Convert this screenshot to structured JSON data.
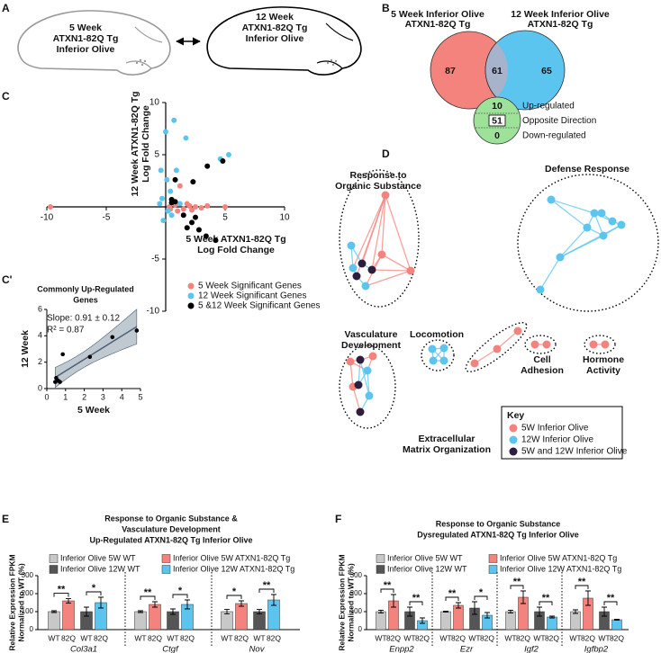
{
  "panels": {
    "A": {
      "letter": "A",
      "brain_5w": [
        "5 Week",
        "ATXN1-82Q Tg",
        "Inferior Olive"
      ],
      "brain_12w": [
        "12 Week",
        "ATXN1-82Q Tg",
        "Inferior Olive"
      ]
    },
    "B": {
      "letter": "B",
      "set_5w": [
        "5 Week Inferior Olive",
        "ATXN1-82Q Tg"
      ],
      "set_12w": [
        "12 Week Inferior Olive",
        "ATXN1-82Q Tg"
      ],
      "only_5w": 87,
      "shared": 61,
      "only_12w": 65,
      "up": 10,
      "opposite": 51,
      "down": 0,
      "up_label": "Up-regulated",
      "opposite_label": "Opposite Direction",
      "down_label": "Down-regulated"
    },
    "D": {
      "letter": "D",
      "clusters": [
        {
          "label": [
            "Response to",
            "Organic Substance"
          ]
        },
        {
          "label": [
            "Defense Response"
          ]
        },
        {
          "label": [
            "Vasculature",
            "Development"
          ]
        },
        {
          "label": [
            "Locomotion"
          ]
        },
        {
          "label": [
            "Extracellular",
            "Matrix Organization"
          ]
        },
        {
          "label": [
            "Cell",
            "Adhesion"
          ]
        },
        {
          "label": [
            "Hormone",
            "Activity"
          ]
        }
      ],
      "key": {
        "title": "Key",
        "items": [
          {
            "label": "5W Inferior Olive",
            "color": "#f4837d"
          },
          {
            "label": "12W Inferior Olive",
            "color": "#5bc5ef"
          },
          {
            "label": "5W and 12W Inferior Olive",
            "color": "#2e1d3d"
          }
        ]
      }
    }
  },
  "chart_data": [
    {
      "panel": "C",
      "type": "scatter",
      "xlabel": [
        "5 Week ATXN1-82Q Tg",
        "Log Fold Change"
      ],
      "xlabel_color": "#f4837d",
      "ylabel": [
        "12 Week ATXN1-82Q Tg",
        "Log Fold Change"
      ],
      "ylabel_color": "#5bc5ef",
      "xlim": [
        -10,
        10
      ],
      "ylim": [
        -10,
        10
      ],
      "xticks": [
        -10,
        -5,
        5,
        10
      ],
      "yticks": [
        -10,
        -5,
        5,
        10
      ],
      "series": [
        {
          "name": "5 Week Significant Genes",
          "color": "#f4837d",
          "x": [
            -9.7,
            5,
            1.2,
            0.3,
            0.8,
            1.5,
            2,
            2.5,
            3,
            1,
            0.6,
            1.8,
            3.5,
            0.4,
            2.2
          ],
          "values": [
            0,
            0,
            2,
            0,
            0.2,
            -0.2,
            0.1,
            0,
            -0.1,
            -0.4,
            0.4,
            0.3,
            0.1,
            -0.2,
            -0.3
          ]
        },
        {
          "name": "12 Week Significant Genes",
          "color": "#5bc5ef",
          "x": [
            0,
            1.7,
            0.7,
            4.6,
            5.3,
            0.9,
            -0.4,
            0.1,
            0.4,
            -0.3,
            0.2,
            -0.2,
            0.5,
            1.2,
            -0.5
          ],
          "values": [
            7.2,
            6.6,
            8.3,
            4.6,
            5,
            3.5,
            3.5,
            2.6,
            1.5,
            0.8,
            -0.4,
            -1.3,
            -0.8,
            0.3,
            0.3
          ]
        },
        {
          "name": "5 &12 Week Significant Genes",
          "color": "#000000",
          "x": [
            4.8,
            3.5,
            2.3,
            0.8,
            0.5,
            0.6,
            0.5,
            0.8,
            1.5,
            2.2,
            2.8,
            3.4,
            2.5,
            1.8,
            4.2
          ],
          "values": [
            4.4,
            3.9,
            2.4,
            2.6,
            0.7,
            0.5,
            0.4,
            0.5,
            -0.8,
            -1.5,
            -2.2,
            -2.8,
            -1,
            -2,
            -3.2
          ]
        }
      ]
    },
    {
      "panel": "C'",
      "type": "scatter",
      "title": [
        "Commonly Up-Regulated",
        "Genes"
      ],
      "annotations": [
        "Slope: 0.91 ± 0.12",
        "R² = 0.87"
      ],
      "xlabel": "5 Week",
      "xlabel_color": "#f4837d",
      "ylabel": "12 Week",
      "ylabel_color": "#5bc5ef",
      "xlim": [
        0,
        5
      ],
      "ylim": [
        0,
        6
      ],
      "xticks": [
        0,
        1,
        2,
        3,
        4,
        5
      ],
      "yticks": [
        0,
        2,
        4,
        6
      ],
      "fit": true,
      "fit_color": "#4a6079",
      "series": [
        {
          "color": "#000000",
          "x": [
            0.45,
            0.5,
            0.6,
            0.7,
            0.85,
            2.3,
            3.5,
            4.8
          ],
          "values": [
            0.5,
            0.8,
            0.6,
            0.5,
            2.6,
            2.4,
            3.9,
            4.4
          ]
        }
      ]
    },
    {
      "panel": "E",
      "type": "bar",
      "title": [
        "Response to Organic Substance &",
        "Vasculature Development",
        "Up-Regulated ATXN1-82Q Tg Inferior Olive"
      ],
      "ylabel": [
        "Relative Expression FPKM",
        "Normalized to WT (%)"
      ],
      "categories": [
        "Col3a1",
        "Ctgf",
        "Nov"
      ],
      "bar_labels": [
        "WT",
        "82Q",
        "WT",
        "82Q"
      ],
      "ylim": [
        0,
        300
      ],
      "yticks": [
        0,
        100,
        200,
        300
      ],
      "series": [
        {
          "name": "Inferior Olive 5W WT",
          "color": "#c8c8c8",
          "values": [
            100,
            100,
            100
          ],
          "errors": [
            5,
            5,
            12
          ]
        },
        {
          "name": "Inferior Olive 5W ATXN1-82Q Tg",
          "color": "#f4837d",
          "values": [
            160,
            140,
            145
          ],
          "errors": [
            12,
            15,
            15
          ]
        },
        {
          "name": "Inferior Olive 12W WT",
          "color": "#555555",
          "values": [
            100,
            100,
            100
          ],
          "errors": [
            25,
            15,
            12
          ]
        },
        {
          "name": "Inferior Olive 12W ATXN1-82Q Tg",
          "color": "#5bc5ef",
          "values": [
            150,
            140,
            165
          ],
          "errors": [
            30,
            25,
            30
          ]
        }
      ],
      "significance": [
        [
          "**",
          "*"
        ],
        [
          "**",
          "*"
        ],
        [
          "*",
          "**"
        ]
      ]
    },
    {
      "panel": "F",
      "type": "bar",
      "title": [
        "Response to Organic Substance",
        "Dysregulated ATXN1-82Q Tg Inferior Olive"
      ],
      "ylabel": [
        "Relative Expression FPKM",
        "Normalized to WT (%)"
      ],
      "categories": [
        "Enpp2",
        "Ezr",
        "Igf2",
        "Igfbp2"
      ],
      "bar_labels": [
        "WT",
        "82Q",
        "WT",
        "82Q"
      ],
      "ylim": [
        0,
        300
      ],
      "yticks": [
        0,
        100,
        200,
        300
      ],
      "series": [
        {
          "name": "Inferior Olive 5W WT",
          "color": "#c8c8c8",
          "values": [
            100,
            100,
            100,
            100
          ],
          "errors": [
            8,
            3,
            8,
            10
          ]
        },
        {
          "name": "Inferior Olive 5W ATXN1-82Q Tg",
          "color": "#f4837d",
          "values": [
            160,
            135,
            180,
            175
          ],
          "errors": [
            35,
            15,
            35,
            40
          ]
        },
        {
          "name": "Inferior Olive 12W WT",
          "color": "#555555",
          "values": [
            100,
            120,
            100,
            100
          ],
          "errors": [
            25,
            35,
            25,
            25
          ]
        },
        {
          "name": "Inferior Olive 12W ATXN1-82Q Tg",
          "color": "#5bc5ef",
          "values": [
            50,
            80,
            70,
            55
          ],
          "errors": [
            15,
            15,
            5,
            3
          ]
        }
      ],
      "significance": [
        [
          "**",
          "**"
        ],
        [
          "**",
          "*"
        ],
        [
          "**",
          "**"
        ],
        [
          "**",
          "**"
        ]
      ]
    }
  ]
}
